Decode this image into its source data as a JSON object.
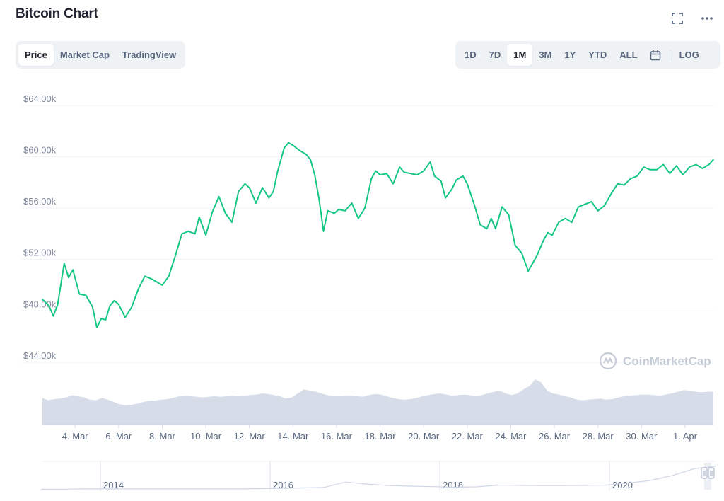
{
  "header": {
    "title": "Bitcoin Chart",
    "fullscreen_icon": "expand-icon",
    "more_icon": "more-horizontal-icon"
  },
  "chart_tabs": [
    "Price",
    "Market Cap",
    "TradingView"
  ],
  "chart_tabs_active": "Price",
  "ranges": [
    "1D",
    "7D",
    "1M",
    "3M",
    "1Y",
    "YTD",
    "ALL"
  ],
  "range_active": "1M",
  "calendar_icon": "calendar-icon",
  "log_label": "LOG",
  "watermark": "CoinMarketCap",
  "colors": {
    "line": "#16c784",
    "volume": "#cfd6e4",
    "grid": "#eff2f5",
    "navigator_line": "#cfd6e4"
  },
  "chart_data": {
    "type": "line",
    "title": "",
    "xlabel": "",
    "ylabel": "",
    "y_tick_labels": [
      "$44.00k",
      "$48.00k",
      "$52.00k",
      "$56.00k",
      "$60.00k",
      "$64.00k"
    ],
    "y_ticks": [
      44000,
      48000,
      52000,
      56000,
      60000,
      64000
    ],
    "ylim": [
      43000,
      64500
    ],
    "x_tick_labels": [
      "4. Mar",
      "6. Mar",
      "8. Mar",
      "10. Mar",
      "12. Mar",
      "14. Mar",
      "16. Mar",
      "18. Mar",
      "20. Mar",
      "22. Mar",
      "24. Mar",
      "26. Mar",
      "28. Mar",
      "30. Mar",
      "1. Apr"
    ],
    "x_ticks": [
      4,
      6,
      8,
      10,
      12,
      14,
      16,
      18,
      20,
      22,
      24,
      26,
      28,
      30,
      32
    ],
    "x_unit": "day of March",
    "xlim": [
      2.5,
      33.3
    ],
    "grid": true,
    "series": [
      {
        "x": [
          2.5,
          2.8,
          3.0,
          3.2,
          3.5,
          3.7,
          3.9,
          4.2,
          4.5,
          4.8,
          5.0,
          5.2,
          5.4,
          5.6,
          5.8,
          6.0,
          6.3,
          6.6,
          6.9,
          7.2,
          7.5,
          7.8,
          8.0,
          8.3,
          8.6,
          8.9,
          9.2,
          9.5,
          9.7,
          10.0,
          10.3,
          10.6,
          10.9,
          11.2,
          11.5,
          11.8,
          12.0,
          12.3,
          12.6,
          12.9,
          13.1,
          13.3,
          13.6,
          13.8,
          14.0,
          14.3,
          14.6,
          14.8,
          15.0,
          15.2,
          15.4,
          15.6,
          15.9,
          16.1,
          16.4,
          16.7,
          17.0,
          17.3,
          17.6,
          17.8,
          18.0,
          18.3,
          18.6,
          18.9,
          19.1,
          19.4,
          19.7,
          20.0,
          20.3,
          20.5,
          20.8,
          21.0,
          21.3,
          21.5,
          21.8,
          22.0,
          22.3,
          22.6,
          22.9,
          23.1,
          23.3,
          23.6,
          23.9,
          24.2,
          24.5,
          24.8,
          25.0,
          25.2,
          25.5,
          25.7,
          25.9,
          26.2,
          26.5,
          26.8,
          27.1,
          27.4,
          27.7,
          28.0,
          28.3,
          28.6,
          28.9,
          29.2,
          29.5,
          29.8,
          30.1,
          30.4,
          30.7,
          31.0,
          31.3,
          31.6,
          31.9,
          32.2,
          32.5,
          32.8,
          33.1,
          33.3
        ],
        "values": [
          48900,
          48400,
          47600,
          48500,
          51700,
          50600,
          51200,
          49300,
          49200,
          48300,
          46700,
          47400,
          47300,
          48400,
          48800,
          48500,
          47500,
          48300,
          49700,
          50700,
          50500,
          50200,
          50000,
          50700,
          52300,
          54000,
          54200,
          54000,
          55300,
          53900,
          55700,
          56900,
          55600,
          54900,
          57300,
          57900,
          57600,
          56400,
          57600,
          56800,
          57300,
          58900,
          60700,
          61100,
          60900,
          60500,
          60200,
          59800,
          58600,
          56700,
          54200,
          55800,
          55600,
          55900,
          55800,
          56400,
          55200,
          56000,
          58300,
          58900,
          58600,
          58700,
          57900,
          59200,
          58800,
          58700,
          58600,
          58900,
          59600,
          58500,
          58100,
          56800,
          57500,
          58200,
          58500,
          57900,
          56400,
          54700,
          54400,
          55200,
          54400,
          56100,
          55500,
          53100,
          52500,
          51100,
          51700,
          52300,
          53500,
          54100,
          53900,
          54900,
          55200,
          54900,
          56100,
          56300,
          56500,
          55800,
          56200,
          57100,
          57900,
          57800,
          58300,
          58500,
          59200,
          59000,
          59000,
          59400,
          58700,
          59300,
          58600,
          59200,
          59400,
          59100,
          59400,
          59800
        ]
      }
    ],
    "volume": {
      "unit": "relative",
      "values": [
        0.47,
        0.43,
        0.45,
        0.46,
        0.48,
        0.52,
        0.5,
        0.48,
        0.44,
        0.43,
        0.47,
        0.44,
        0.4,
        0.36,
        0.34,
        0.35,
        0.37,
        0.4,
        0.42,
        0.42,
        0.44,
        0.45,
        0.47,
        0.5,
        0.51,
        0.5,
        0.49,
        0.48,
        0.49,
        0.5,
        0.49,
        0.5,
        0.51,
        0.5,
        0.51,
        0.52,
        0.53,
        0.55,
        0.54,
        0.52,
        0.5,
        0.46,
        0.48,
        0.55,
        0.62,
        0.6,
        0.58,
        0.55,
        0.52,
        0.5,
        0.5,
        0.51,
        0.51,
        0.5,
        0.49,
        0.52,
        0.54,
        0.53,
        0.5,
        0.47,
        0.45,
        0.44,
        0.45,
        0.47,
        0.5,
        0.52,
        0.54,
        0.55,
        0.53,
        0.51,
        0.52,
        0.53,
        0.52,
        0.5,
        0.52,
        0.55,
        0.58,
        0.6,
        0.55,
        0.52,
        0.55,
        0.62,
        0.68,
        0.8,
        0.74,
        0.6,
        0.55,
        0.53,
        0.5,
        0.48,
        0.44,
        0.43,
        0.44,
        0.45,
        0.46,
        0.44,
        0.45,
        0.48,
        0.5,
        0.51,
        0.52,
        0.53,
        0.53,
        0.52,
        0.51,
        0.53,
        0.55,
        0.58,
        0.61,
        0.6,
        0.58,
        0.57,
        0.58,
        0.58
      ]
    },
    "navigator": {
      "labels": [
        "2014",
        "2016",
        "2018",
        "2020"
      ],
      "label_years": [
        2014,
        2016,
        2018,
        2020
      ],
      "xlim": [
        2013.3,
        2021.25
      ],
      "values": [
        0.02,
        0.02,
        0.03,
        0.03,
        0.03,
        0.03,
        0.03,
        0.03,
        0.03,
        0.03,
        0.04,
        0.05,
        0.07,
        0.09,
        0.3,
        0.22,
        0.16,
        0.14,
        0.12,
        0.1,
        0.11,
        0.18,
        0.17,
        0.16,
        0.16,
        0.17,
        0.18,
        0.26,
        0.36,
        0.55,
        0.82,
        0.92
      ]
    }
  }
}
